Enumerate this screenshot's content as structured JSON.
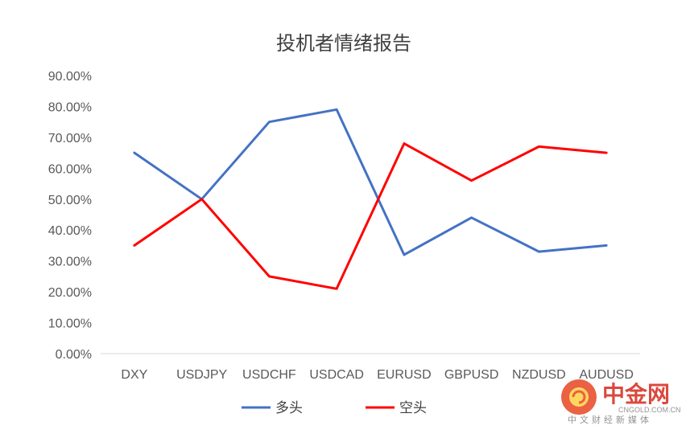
{
  "chart_data": {
    "type": "line",
    "title": "投机者情绪报告",
    "categories": [
      "DXY",
      "USDJPY",
      "USDCHF",
      "USDCAD",
      "EURUSD",
      "GBPUSD",
      "NZDUSD",
      "AUDUSD"
    ],
    "series": [
      {
        "name": "多头",
        "color": "#4472c4",
        "values": [
          65,
          50,
          75,
          79,
          32,
          44,
          33,
          35
        ]
      },
      {
        "name": "空头",
        "color": "#ff0000",
        "values": [
          35,
          50,
          25,
          21,
          68,
          56,
          67,
          65
        ]
      }
    ],
    "ylim": [
      0,
      90
    ],
    "yticks": [
      "0.00%",
      "10.00%",
      "20.00%",
      "30.00%",
      "40.00%",
      "50.00%",
      "60.00%",
      "70.00%",
      "80.00%",
      "90.00%"
    ],
    "grid": false,
    "legend_position": "bottom"
  },
  "watermark": {
    "brand": "中金网",
    "url": "CNGOLD.COM.CN",
    "tagline": "中文财经新媒体"
  }
}
